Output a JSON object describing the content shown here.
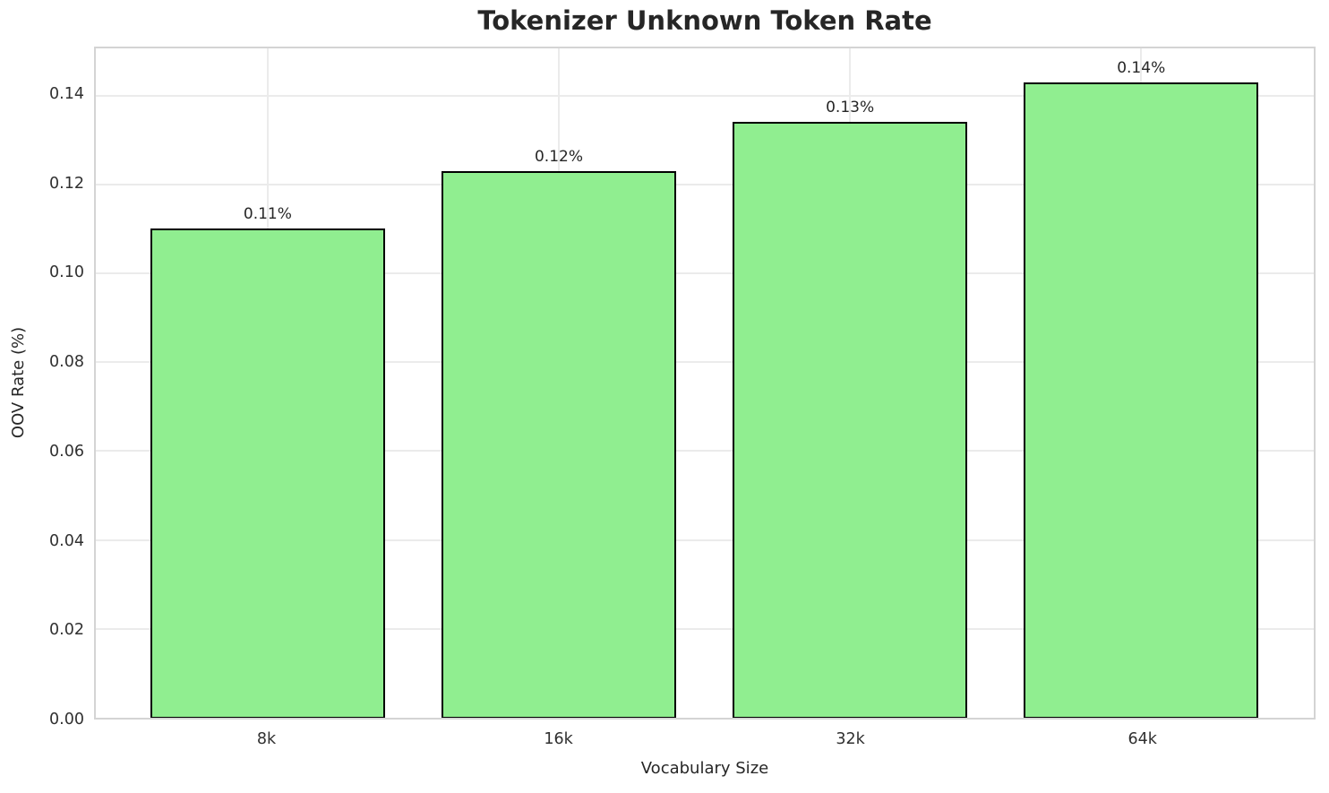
{
  "chart_data": {
    "type": "bar",
    "title": "Tokenizer Unknown Token Rate",
    "xlabel": "Vocabulary Size",
    "ylabel": "OOV Rate (%)",
    "categories": [
      "8k",
      "16k",
      "32k",
      "64k"
    ],
    "values": [
      0.11,
      0.123,
      0.134,
      0.143
    ],
    "bar_labels": [
      "0.11%",
      "0.12%",
      "0.13%",
      "0.14%"
    ],
    "y_ticks": [
      0.0,
      0.02,
      0.04,
      0.06,
      0.08,
      0.1,
      0.12,
      0.14
    ],
    "y_tick_labels": [
      "0.00",
      "0.02",
      "0.04",
      "0.06",
      "0.08",
      "0.10",
      "0.12",
      "0.14"
    ],
    "ylim": [
      0,
      0.1506
    ],
    "grid": true,
    "legend": "none",
    "bar_color": "#90EE90",
    "bar_edge_color": "#000000",
    "grid_color": "#ebebeb",
    "spine_color": "#d4d4d4",
    "text_color": "#262626"
  }
}
